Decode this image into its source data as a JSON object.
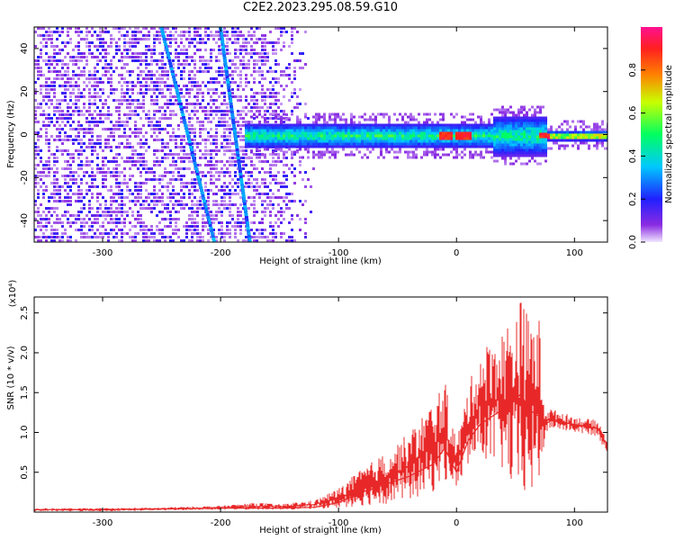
{
  "title": "C2E2.2023.295.08.59.G10",
  "colors": {
    "signal_line": "#e82828",
    "heatmap_base": "#6a0dff",
    "axis": "#000000"
  },
  "colorbar": {
    "label": "Normalized spectral amplitude",
    "ticks": [
      "0.0",
      "0.2",
      "0.4",
      "0.6",
      "0.8"
    ],
    "tick_values": [
      0.0,
      0.2,
      0.4,
      0.6,
      0.8
    ],
    "range": [
      0,
      1
    ],
    "colormap": "rainbow (purple→blue→cyan→green→yellow→red→magenta)"
  },
  "chart_data": [
    {
      "type": "heatmap",
      "xlabel": "Height of straight line (km)",
      "ylabel": "Frequency (Hz)",
      "xlim": [
        -358,
        128
      ],
      "ylim": [
        -50,
        50
      ],
      "xticks": [
        -300,
        -200,
        -100,
        0,
        100
      ],
      "yticks": [
        -40,
        -20,
        0,
        20,
        40
      ],
      "z_range": [
        0,
        1
      ],
      "features": {
        "band_center_hz": 0,
        "band_start_km": -180,
        "noise_extent_km": -120,
        "diagonal_tracks": [
          {
            "x_at_top": -250,
            "x_at_bottom": -205
          },
          {
            "x_at_top": -200,
            "x_at_bottom": -175
          }
        ],
        "peak_amplitude_km": [
          -10,
          5,
          75
        ]
      }
    },
    {
      "type": "line",
      "xlabel": "Height of straight line (km)",
      "ylabel": "SNR (10 * v/v)",
      "y_multiplier": "(x10⁴)",
      "xlim": [
        -358,
        128
      ],
      "ylim": [
        0,
        2.7
      ],
      "xticks": [
        -300,
        -200,
        -100,
        0,
        100
      ],
      "yticks": [
        "0.5",
        "1.0",
        "1.5",
        "2.0",
        "2.5"
      ],
      "ytick_values": [
        0.5,
        1.0,
        1.5,
        2.0,
        2.5
      ],
      "series": [
        {
          "x": [
            -358,
            -300,
            -250,
            -200,
            -170,
            -150,
            -120,
            -100,
            -80,
            -60,
            -40,
            -20,
            -10,
            0,
            10,
            20,
            30,
            40,
            50,
            55,
            60,
            70,
            75,
            80,
            100,
            120,
            125,
            128
          ],
          "y": [
            0.03,
            0.03,
            0.04,
            0.05,
            0.05,
            0.05,
            0.06,
            0.12,
            0.25,
            0.35,
            0.45,
            0.6,
            0.8,
            0.5,
            0.9,
            1.1,
            1.2,
            1.3,
            1.4,
            1.5,
            1.3,
            1.2,
            1.1,
            1.15,
            1.1,
            1.05,
            0.9,
            0.85
          ],
          "envelope_max": [
            0.05,
            0.05,
            0.06,
            0.08,
            0.12,
            0.1,
            0.15,
            0.3,
            0.55,
            0.75,
            1.0,
            1.4,
            1.65,
            0.9,
            1.6,
            2.0,
            2.2,
            2.3,
            2.6,
            2.7,
            2.5,
            2.45,
            1.3,
            1.3,
            1.2,
            1.15,
            1.0,
            0.95
          ],
          "envelope_min": [
            0.01,
            0.01,
            0.02,
            0.03,
            0.03,
            0.03,
            0.04,
            0.05,
            0.08,
            0.1,
            0.15,
            0.25,
            0.4,
            0.3,
            0.55,
            0.7,
            0.6,
            0.5,
            0.2,
            0.15,
            0.2,
            0.25,
            0.95,
            1.05,
            1.0,
            0.95,
            0.8,
            0.75
          ]
        }
      ]
    }
  ]
}
